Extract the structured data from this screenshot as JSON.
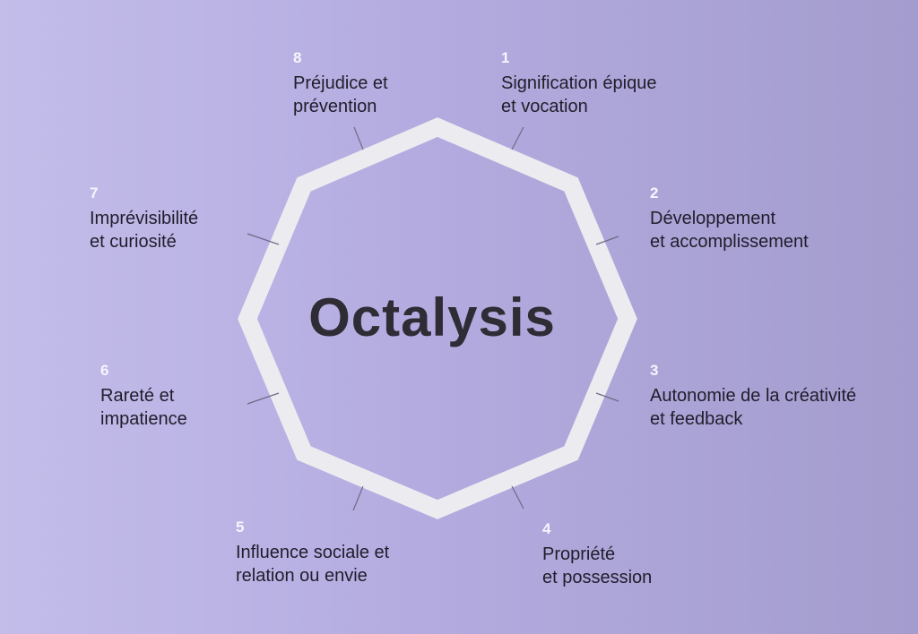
{
  "title": "Octalysis",
  "drives": [
    {
      "number": "1",
      "lines": [
        "Signification épique",
        "et vocation"
      ]
    },
    {
      "number": "2",
      "lines": [
        "Développement",
        "et accomplissement"
      ]
    },
    {
      "number": "3",
      "lines": [
        "Autonomie de la créativité",
        "et feedback"
      ]
    },
    {
      "number": "4",
      "lines": [
        "Propriété",
        "et possession"
      ]
    },
    {
      "number": "5",
      "lines": [
        "Influence sociale et",
        "relation ou envie"
      ]
    },
    {
      "number": "6",
      "lines": [
        "Rareté et",
        "impatience"
      ]
    },
    {
      "number": "7",
      "lines": [
        "Imprévisibilité",
        "et curiosité"
      ]
    },
    {
      "number": "8",
      "lines": [
        "Préjudice et",
        "prévention"
      ]
    }
  ],
  "colors": {
    "background_left": "#c3bdea",
    "background_right": "#a39ccd",
    "octagon_stroke": "#ececf0",
    "text_dark": "#201d2b",
    "number_white": "#f7f5ff"
  }
}
